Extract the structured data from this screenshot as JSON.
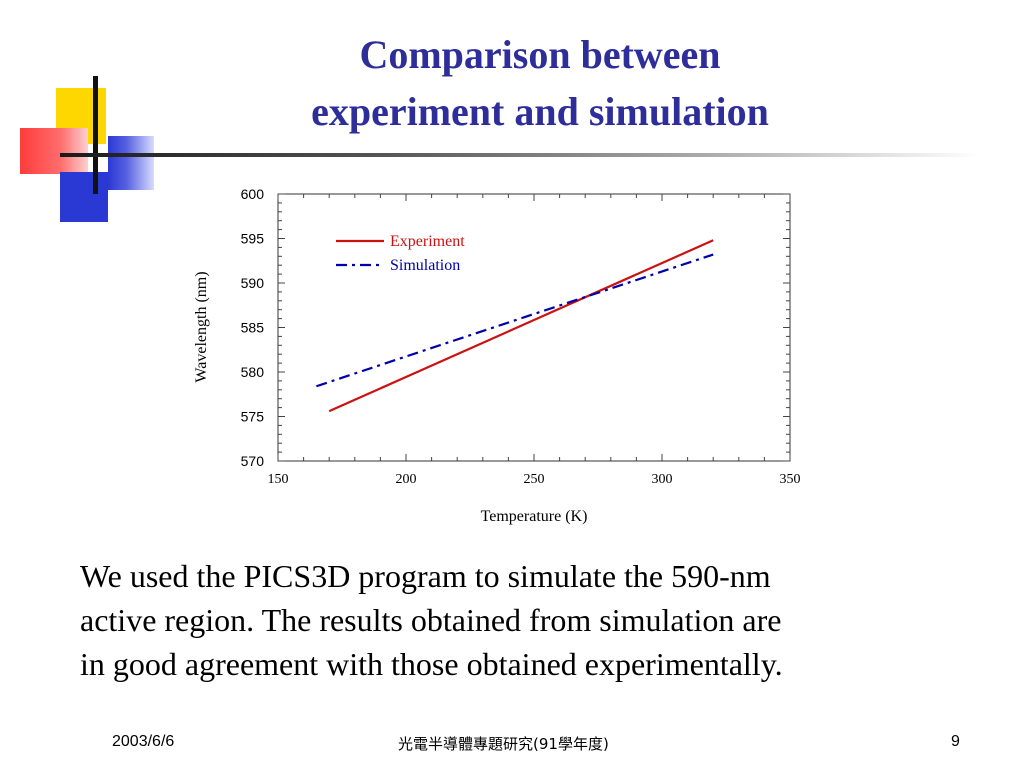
{
  "slide": {
    "title_line1": "Comparison between",
    "title_line2": "experiment and simulation",
    "body_lines": [
      "We used the PICS3D program to simulate the 590-nm",
      "active region. The results obtained from simulation are",
      "in good agreement with those obtained experimentally."
    ],
    "footer_date": "2003/6/6",
    "footer_center": "光電半導體專題研究(91學年度)",
    "page_number": "9"
  },
  "colors": {
    "title": "#2e2e9a",
    "experiment": "#cc1111",
    "simulation": "#0000aa"
  },
  "chart_data": {
    "type": "line",
    "xlabel": "Temperature (K)",
    "ylabel": "Wavelength (nm)",
    "xlim": [
      150,
      350
    ],
    "ylim": [
      570,
      600
    ],
    "x_ticks": [
      150,
      200,
      250,
      300,
      350
    ],
    "y_ticks": [
      570,
      575,
      580,
      585,
      590,
      595,
      600
    ],
    "grid": false,
    "legend_position": "top-left",
    "series": [
      {
        "name": "Experiment",
        "style": "solid",
        "color": "#cc1111",
        "points": [
          [
            170,
            575.6
          ],
          [
            320,
            594.8
          ]
        ]
      },
      {
        "name": "Simulation",
        "style": "dash-dot",
        "color": "#0000aa",
        "points": [
          [
            165,
            578.4
          ],
          [
            320,
            593.2
          ]
        ]
      }
    ]
  }
}
